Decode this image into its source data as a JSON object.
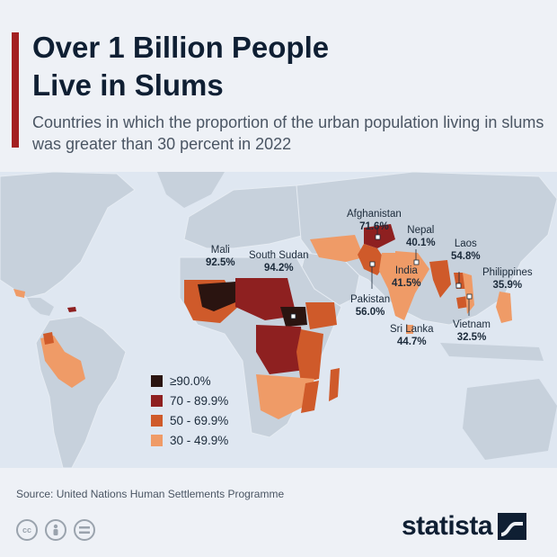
{
  "title_line1": "Over 1 Billion People",
  "title_line2": "Live in Slums",
  "subtitle": "Countries in which the proportion of the urban population living in slums was greater than 30 percent in 2022",
  "colors": {
    "ge90": "#2a1410",
    "c70": "#8e2020",
    "c50": "#cf5a2a",
    "c30": "#ef9b67",
    "land": "#c7d1dc",
    "sea": "#dfe7f1",
    "accent": "#a32020"
  },
  "labels": {
    "mali": {
      "name": "Mali",
      "value": "92.5%"
    },
    "south_sudan": {
      "name": "South Sudan",
      "value": "94.2%"
    },
    "afghanistan": {
      "name": "Afghanistan",
      "value": "71.6%"
    },
    "nepal": {
      "name": "Nepal",
      "value": "40.1%"
    },
    "india": {
      "name": "India",
      "value": "41.5%"
    },
    "laos": {
      "name": "Laos",
      "value": "54.8%"
    },
    "pakistan": {
      "name": "Pakistan",
      "value": "56.0%"
    },
    "philippines": {
      "name": "Philippines",
      "value": "35.9%"
    },
    "sri_lanka": {
      "name": "Sri Lanka",
      "value": "44.7%"
    },
    "vietnam": {
      "name": "Vietnam",
      "value": "32.5%"
    }
  },
  "legend": [
    {
      "label": "≥90.0%",
      "color": "#2a1410"
    },
    {
      "label": "70 - 89.9%",
      "color": "#8e2020"
    },
    {
      "label": "50 - 69.9%",
      "color": "#cf5a2a"
    },
    {
      "label": "30 - 49.9%",
      "color": "#ef9b67"
    }
  ],
  "source": "Source: United Nations Human Settlements Programme",
  "license_icons": [
    "cc-icon",
    "attribution-icon",
    "no-derivatives-icon"
  ],
  "brand": "statista"
}
